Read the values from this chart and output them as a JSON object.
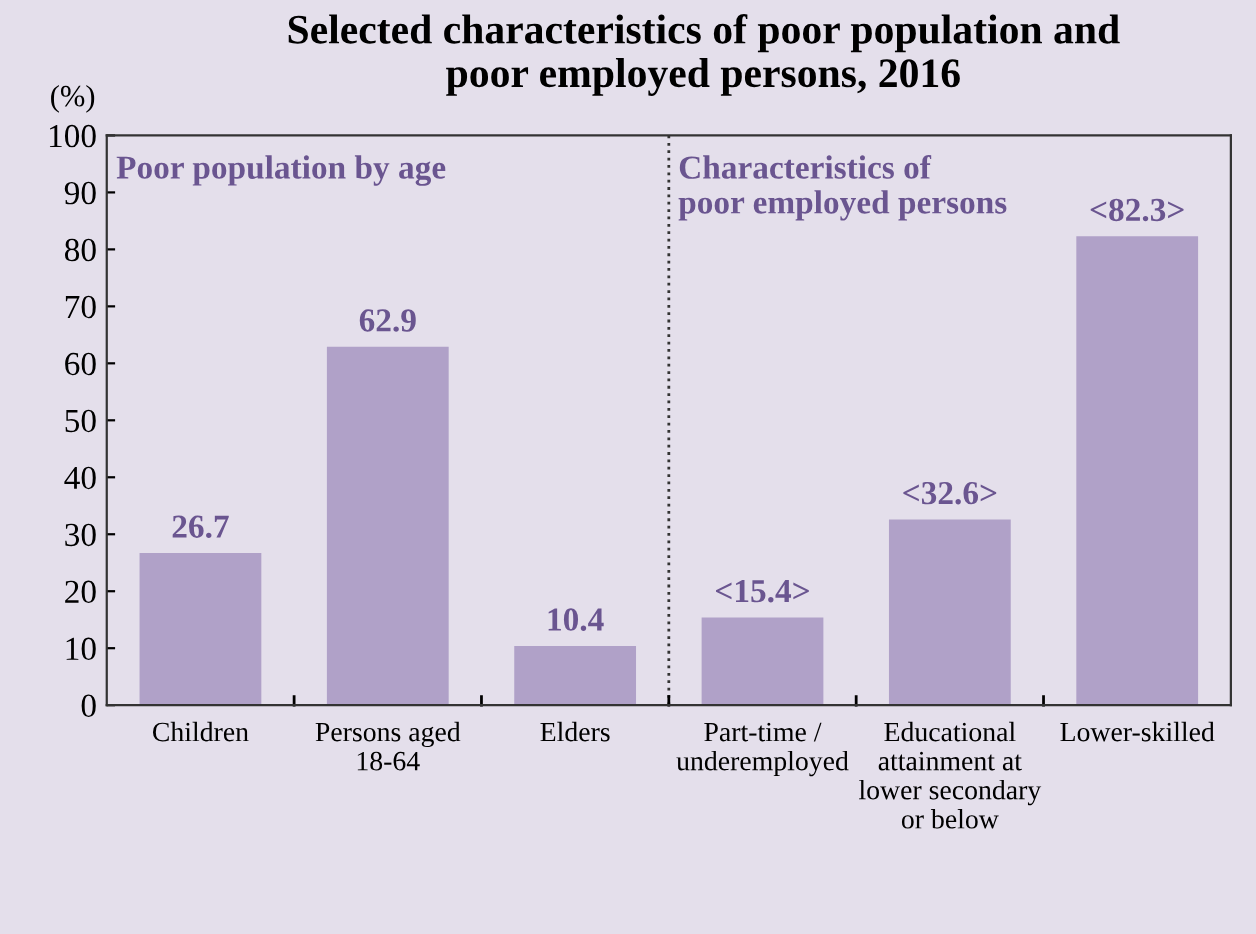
{
  "chart_data": {
    "type": "bar",
    "title": "Selected characteristics of poor population and\npoor employed persons, 2016",
    "ylabel": "(%)",
    "categories": [
      "Children",
      "Persons aged\n18-64",
      "Elders",
      "Part-time /\nunderemployed",
      "Educational\nattainment at\nlower secondary\nor below",
      "Lower-skilled"
    ],
    "values": [
      26.7,
      62.9,
      10.4,
      15.4,
      32.6,
      82.3
    ],
    "value_labels": [
      "26.7",
      "62.9",
      "10.4",
      "<15.4>",
      "<32.6>",
      "<82.3>"
    ],
    "color": "#b0a1c8",
    "ylim": [
      0,
      100
    ],
    "yticks": [
      0,
      10,
      20,
      30,
      40,
      50,
      60,
      70,
      80,
      90,
      100
    ],
    "grid": false,
    "annotations": [
      "Poor population by age",
      "Characteristics of\npoor employed persons"
    ]
  }
}
